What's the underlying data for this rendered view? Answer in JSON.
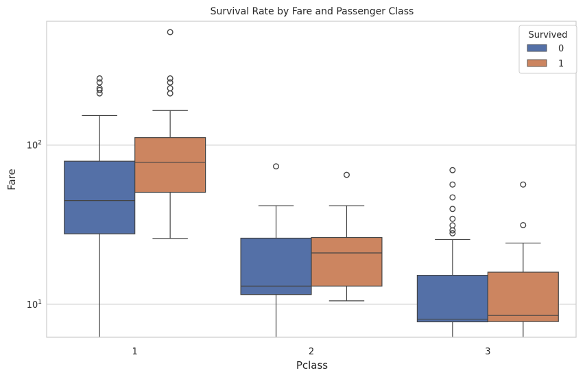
{
  "chart_data": {
    "type": "box",
    "title": "Survival Rate by Fare and Passenger Class",
    "xlabel": "Pclass",
    "ylabel": "Fare",
    "yscale": "log",
    "ylim": [
      6.2,
      600
    ],
    "categories": [
      "1",
      "2",
      "3"
    ],
    "y_ticks": [
      {
        "value": 10,
        "base": "10",
        "exp": "1"
      },
      {
        "value": 100,
        "base": "10",
        "exp": "2"
      }
    ],
    "grid": true,
    "legend": {
      "title": "Survived",
      "position": "top-right",
      "entries": [
        "0",
        "1"
      ]
    },
    "series": [
      {
        "name": "0",
        "color": "#5470a7",
        "boxes": [
          {
            "category": "1",
            "whisker_low": 0,
            "q1": 27.7,
            "median": 44.8,
            "q3": 79.2,
            "whisker_high": 153.5,
            "fliers": [
              211.3,
              221.8,
              227.5,
              247.5,
              262.4
            ]
          },
          {
            "category": "2",
            "whisker_low": 0,
            "q1": 11.5,
            "median": 13.0,
            "q3": 26.0,
            "whisker_high": 41.6,
            "fliers": [
              73.5
            ]
          },
          {
            "category": "3",
            "whisker_low": 0,
            "q1": 7.75,
            "median": 8.05,
            "q3": 15.2,
            "whisker_high": 25.5,
            "fliers": [
              27.9,
              29.1,
              31.3,
              34.4,
              39.7,
              46.9,
              56.5,
              69.6
            ]
          }
        ]
      },
      {
        "name": "1",
        "color": "#cc8560",
        "boxes": [
          {
            "category": "1",
            "whisker_low": 25.9,
            "q1": 50.5,
            "median": 77.9,
            "q3": 111.5,
            "whisker_high": 164.9,
            "fliers": [
              211.3,
              227.5,
              247.5,
              262.4,
              512.3
            ]
          },
          {
            "category": "2",
            "whisker_low": 10.5,
            "q1": 13.0,
            "median": 21.0,
            "q3": 26.25,
            "whisker_high": 41.6,
            "fliers": [
              65.0
            ]
          },
          {
            "category": "3",
            "whisker_low": 0,
            "q1": 7.78,
            "median": 8.5,
            "q3": 15.9,
            "whisker_high": 24.2,
            "fliers": [
              31.4,
              56.5
            ]
          }
        ]
      }
    ]
  }
}
